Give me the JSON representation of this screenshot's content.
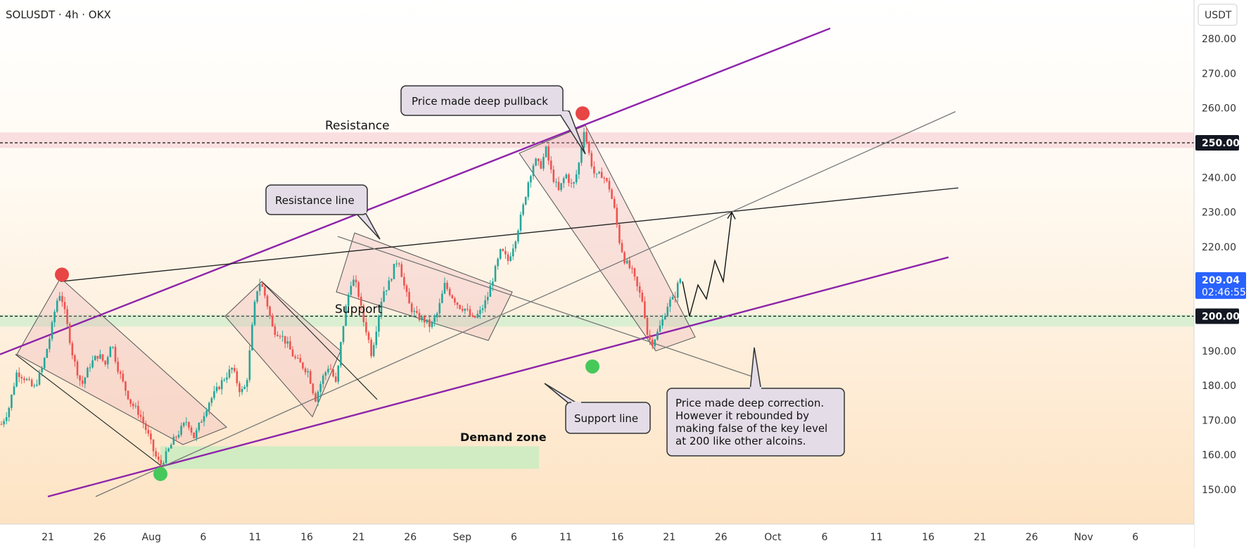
{
  "header": {
    "symbol_line": "SOLUSDT · 4h · OKX"
  },
  "axis": {
    "currency": "USDT"
  },
  "chart_data": {
    "type": "candlestick",
    "title": "SOLUSDT · 4h · OKX",
    "y_ticks": [
      "150.00",
      "160.00",
      "170.00",
      "180.00",
      "190.00",
      "200.00",
      "210.00",
      "220.00",
      "230.00",
      "240.00",
      "250.00",
      "260.00",
      "270.00",
      "280.00"
    ],
    "ylim": [
      143,
      287
    ],
    "x_ticks": [
      "21",
      "26",
      "Aug",
      "6",
      "11",
      "16",
      "21",
      "26",
      "Sep",
      "6",
      "11",
      "16",
      "21",
      "26",
      "Oct",
      "6",
      "11",
      "16",
      "21",
      "26",
      "Nov",
      "6"
    ],
    "price_badges": [
      {
        "label": "250.00",
        "value": 250,
        "style": "dark"
      },
      {
        "label": "209.04",
        "sublabel": "02:46:55",
        "value": 209.04,
        "style": "blue"
      },
      {
        "label": "200.00",
        "value": 200,
        "style": "dark"
      }
    ],
    "zones": [
      {
        "name": "Resistance",
        "low": 248.5,
        "high": 253,
        "color": "#f9d9dc"
      },
      {
        "name": "Support",
        "low": 197,
        "high": 200.5,
        "color": "#d4efd0"
      },
      {
        "name": "Demand zone",
        "low": 156,
        "high": 162.5,
        "color": "#c9ecbf"
      }
    ],
    "horizontal_levels": [
      250,
      200
    ],
    "close_path": [
      [
        0,
        168
      ],
      [
        12,
        173
      ],
      [
        24,
        184
      ],
      [
        36,
        182
      ],
      [
        48,
        179
      ],
      [
        60,
        185
      ],
      [
        72,
        195
      ],
      [
        80,
        204
      ],
      [
        86,
        207
      ],
      [
        94,
        199
      ],
      [
        104,
        188
      ],
      [
        116,
        180
      ],
      [
        128,
        186
      ],
      [
        140,
        189
      ],
      [
        150,
        186
      ],
      [
        158,
        193
      ],
      [
        166,
        186
      ],
      [
        176,
        180
      ],
      [
        186,
        175
      ],
      [
        198,
        172
      ],
      [
        210,
        166
      ],
      [
        220,
        160
      ],
      [
        228,
        157
      ],
      [
        236,
        160
      ],
      [
        246,
        164
      ],
      [
        256,
        167
      ],
      [
        266,
        170
      ],
      [
        276,
        165
      ],
      [
        286,
        170
      ],
      [
        296,
        175
      ],
      [
        306,
        178
      ],
      [
        318,
        182
      ],
      [
        330,
        185
      ],
      [
        342,
        178
      ],
      [
        350,
        180
      ],
      [
        358,
        196
      ],
      [
        364,
        207
      ],
      [
        370,
        210
      ],
      [
        378,
        205
      ],
      [
        388,
        196
      ],
      [
        398,
        195
      ],
      [
        408,
        192
      ],
      [
        418,
        188
      ],
      [
        428,
        186
      ],
      [
        438,
        184
      ],
      [
        448,
        176
      ],
      [
        458,
        182
      ],
      [
        468,
        186
      ],
      [
        478,
        180
      ],
      [
        486,
        195
      ],
      [
        492,
        203
      ],
      [
        500,
        211
      ],
      [
        508,
        208
      ],
      [
        516,
        199
      ],
      [
        522,
        195
      ],
      [
        528,
        189
      ],
      [
        536,
        198
      ],
      [
        544,
        207
      ],
      [
        552,
        209
      ],
      [
        560,
        214
      ],
      [
        566,
        217
      ],
      [
        574,
        209
      ],
      [
        582,
        203
      ],
      [
        592,
        200
      ],
      [
        602,
        199
      ],
      [
        612,
        197
      ],
      [
        622,
        201
      ],
      [
        632,
        209
      ],
      [
        642,
        206
      ],
      [
        652,
        203
      ],
      [
        662,
        202
      ],
      [
        672,
        199
      ],
      [
        682,
        201
      ],
      [
        692,
        205
      ],
      [
        702,
        212
      ],
      [
        712,
        219
      ],
      [
        722,
        216
      ],
      [
        732,
        222
      ],
      [
        742,
        230
      ],
      [
        752,
        240
      ],
      [
        760,
        245
      ],
      [
        768,
        243
      ],
      [
        776,
        248
      ],
      [
        784,
        241
      ],
      [
        794,
        236
      ],
      [
        804,
        241
      ],
      [
        814,
        237
      ],
      [
        822,
        243
      ],
      [
        830,
        254
      ],
      [
        838,
        246
      ],
      [
        846,
        240
      ],
      [
        856,
        241
      ],
      [
        866,
        237
      ],
      [
        874,
        230
      ],
      [
        880,
        222
      ],
      [
        888,
        216
      ],
      [
        898,
        213
      ],
      [
        906,
        208
      ],
      [
        914,
        204
      ],
      [
        920,
        195
      ],
      [
        926,
        192
      ],
      [
        934,
        195
      ],
      [
        942,
        199
      ],
      [
        950,
        204
      ],
      [
        958,
        205
      ],
      [
        966,
        211
      ],
      [
        970,
        210
      ]
    ],
    "projection": [
      [
        970,
        210
      ],
      [
        980,
        200
      ],
      [
        992,
        209
      ],
      [
        1004,
        205
      ],
      [
        1016,
        216
      ],
      [
        1028,
        210
      ],
      [
        1040,
        230
      ]
    ],
    "markers": [
      {
        "color": "#e84545",
        "x": 88,
        "value": 212
      },
      {
        "color": "#e84545",
        "x": 828,
        "value": 258.5
      },
      {
        "color": "#47c85a",
        "x": 228,
        "value": 154.5
      },
      {
        "color": "#47c85a",
        "x": 842,
        "value": 185.5
      }
    ],
    "trend_lines": [
      {
        "name": "upper-channel",
        "color": "#8e24aa",
        "from": [
          0,
          189
        ],
        "to": [
          1180,
          283
        ]
      },
      {
        "name": "lower-channel",
        "color": "#8e24aa",
        "from": [
          68,
          148
        ],
        "to": [
          1348,
          217
        ]
      },
      {
        "name": "resistance-line",
        "color": "#222222",
        "from": [
          86,
          210
        ],
        "to": [
          1362,
          237
        ]
      },
      {
        "name": "gray-rising",
        "color": "#777777",
        "from": [
          136,
          148
        ],
        "to": [
          1358,
          259
        ]
      },
      {
        "name": "gray-falling",
        "color": "#777777",
        "from": [
          480,
          223
        ],
        "to": [
          1078,
          182
        ]
      }
    ],
    "flags": [
      [
        [
          24,
          189
        ],
        [
          86,
          211
        ],
        [
          322,
          168
        ],
        [
          260,
          163
        ]
      ],
      [
        [
          320,
          200
        ],
        [
          372,
          210
        ],
        [
          484,
          190
        ],
        [
          444,
          171
        ]
      ],
      [
        [
          478,
          207
        ],
        [
          504,
          224
        ],
        [
          728,
          207
        ],
        [
          694,
          193
        ]
      ],
      [
        [
          738,
          247
        ],
        [
          772,
          250
        ],
        [
          832,
          255
        ],
        [
          988,
          194
        ],
        [
          932,
          190
        ]
      ]
    ],
    "extra_lines": [
      {
        "from": [
          22,
          189
        ],
        "to": [
          228,
          157
        ]
      },
      {
        "from": [
          372,
          210
        ],
        "to": [
          536,
          176
        ]
      }
    ]
  },
  "annotations": {
    "resistance_zone": "Resistance",
    "support_zone": "Support",
    "demand_zone": "Demand zone",
    "callout_resistance_line": "Resistance line",
    "callout_pullback": "Price made deep pullback",
    "callout_support_line": "Support line",
    "callout_correction": [
      "Price made deep correction.",
      "However it rebounded by",
      "making false of the key level",
      "at 200 like other alcoins."
    ]
  }
}
